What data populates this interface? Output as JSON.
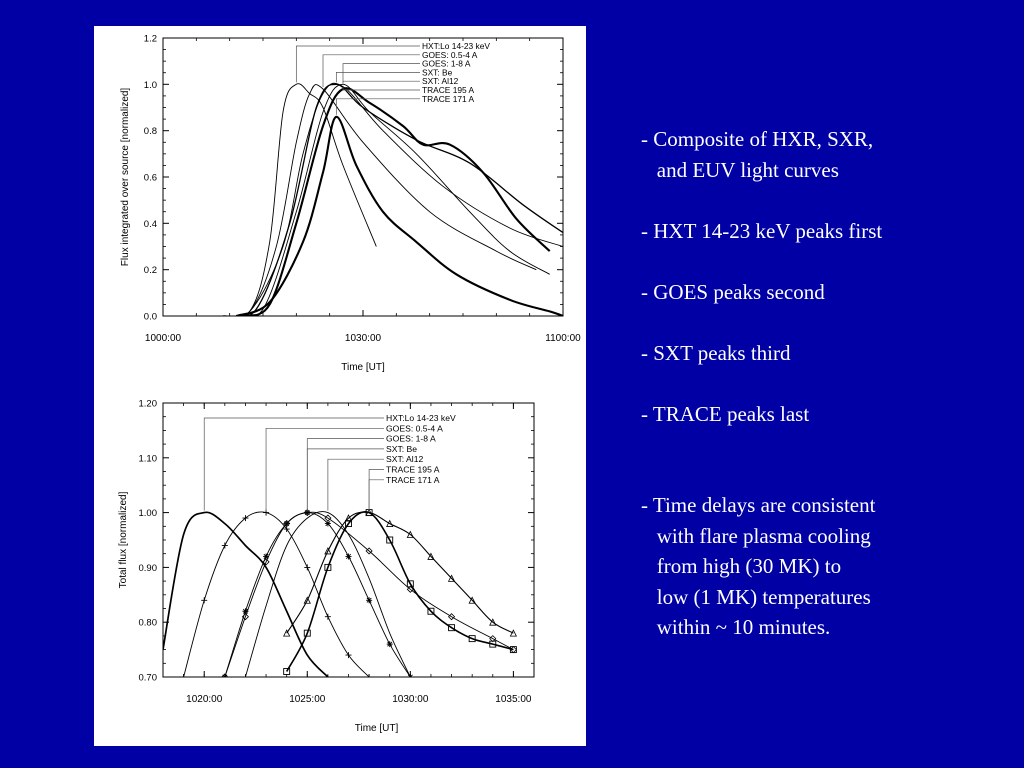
{
  "bullets": [
    "- Composite of HXR, SXR,\n   and EUV light curves",
    "- HXT 14-23 keV peaks first",
    "- GOES peaks second",
    "- SXT peaks third",
    "- TRACE peaks last",
    "- Time delays are consistent\n   with flare plasma cooling\n   from high (30 MK) to\n   low (1 MK) temperatures\n   within ~ 10 minutes."
  ],
  "chart_data": [
    {
      "type": "line",
      "title": "",
      "xlabel": "Time [UT]",
      "ylabel": "Flux integrated over source [normalized]",
      "x_tick_labels": [
        "1000:00",
        "1030:00",
        "1100:00"
      ],
      "y_tick_labels": [
        "0.0",
        "0.2",
        "0.4",
        "0.6",
        "0.8",
        "1.0",
        "1.2"
      ],
      "xlim": [
        "10:00",
        "11:00"
      ],
      "ylim": [
        0.0,
        1.2
      ],
      "legend_position": "top-right",
      "grid": false,
      "series": [
        {
          "name": "HXT:Lo 14-23 keV",
          "style": "thin",
          "x": [
            "10:08",
            "10:13",
            "10:16",
            "10:18",
            "10:20",
            "10:22",
            "10:24",
            "10:27",
            "10:32"
          ],
          "y": [
            0.0,
            0.02,
            0.32,
            0.88,
            1.0,
            0.96,
            0.9,
            0.65,
            0.3
          ]
        },
        {
          "name": "GOES: 0.5-4 A",
          "style": "thin",
          "x": [
            "10:08",
            "10:13",
            "10:17",
            "10:20",
            "10:22",
            "10:24",
            "10:30",
            "10:40",
            "10:50",
            "10:56"
          ],
          "y": [
            0.0,
            0.02,
            0.3,
            0.75,
            0.96,
            0.98,
            0.75,
            0.45,
            0.28,
            0.2
          ]
        },
        {
          "name": "GOES: 1-8 A",
          "style": "thin",
          "x": [
            "10:08",
            "10:13",
            "10:18",
            "10:21",
            "10:24",
            "10:27",
            "10:33",
            "10:42",
            "10:52",
            "11:00"
          ],
          "y": [
            0.0,
            0.02,
            0.3,
            0.7,
            0.96,
            0.99,
            0.8,
            0.56,
            0.38,
            0.3
          ]
        },
        {
          "name": "SXT: Be",
          "style": "medium",
          "x": [
            "10:09",
            "10:14",
            "10:19",
            "10:23",
            "10:26",
            "10:30",
            "10:38",
            "10:46",
            "10:54",
            "11:00"
          ],
          "y": [
            0.0,
            0.03,
            0.4,
            0.9,
            1.0,
            0.9,
            0.76,
            0.66,
            0.48,
            0.36
          ]
        },
        {
          "name": "SXT: Al12",
          "style": "thin",
          "x": [
            "10:10",
            "10:15",
            "10:20",
            "10:24",
            "10:27",
            "10:31",
            "10:38",
            "10:46",
            "10:52",
            "10:58"
          ],
          "y": [
            0.0,
            0.03,
            0.45,
            0.88,
            1.0,
            0.88,
            0.7,
            0.45,
            0.28,
            0.18
          ]
        },
        {
          "name": "TRACE 195 A",
          "style": "thick",
          "x": [
            "10:12",
            "10:16",
            "10:20",
            "10:24",
            "10:27",
            "10:31",
            "10:36",
            "10:39",
            "10:43",
            "10:48",
            "10:53",
            "10:58"
          ],
          "y": [
            0.0,
            0.05,
            0.4,
            0.82,
            0.98,
            0.92,
            0.82,
            0.74,
            0.74,
            0.62,
            0.42,
            0.28
          ]
        },
        {
          "name": "TRACE 171 A",
          "style": "thick",
          "x": [
            "10:11",
            "10:16",
            "10:21",
            "10:24",
            "10:26",
            "10:29",
            "10:33",
            "10:38",
            "10:44",
            "10:52",
            "10:58",
            "11:00"
          ],
          "y": [
            0.0,
            0.06,
            0.32,
            0.62,
            0.86,
            0.65,
            0.45,
            0.32,
            0.18,
            0.07,
            0.02,
            0.0
          ]
        }
      ]
    },
    {
      "type": "line",
      "title": "",
      "xlabel": "Time [UT]",
      "ylabel": "Total flux [normalized]",
      "x_tick_labels": [
        "1020:00",
        "1025:00",
        "1030:00",
        "1035:00"
      ],
      "y_tick_labels": [
        "0.70",
        "0.80",
        "0.90",
        "1.00",
        "1.10",
        "1.20"
      ],
      "xlim": [
        "10:18",
        "10:36"
      ],
      "ylim": [
        0.7,
        1.2
      ],
      "legend_position": "top-center",
      "grid": false,
      "series": [
        {
          "name": "HXT:Lo 14-23 keV",
          "style": "thick-noisy",
          "x": [
            "10:18",
            "10:19",
            "10:20",
            "10:21",
            "10:22",
            "10:23",
            "10:24",
            "10:25",
            "10:26"
          ],
          "y": [
            0.75,
            0.96,
            1.0,
            0.98,
            0.94,
            0.9,
            0.82,
            0.74,
            0.7
          ]
        },
        {
          "name": "GOES: 0.5-4 A",
          "style": "plus-markers",
          "x": [
            "10:19",
            "10:20",
            "10:21",
            "10:22",
            "10:23",
            "10:24",
            "10:25",
            "10:26",
            "10:27",
            "10:28"
          ],
          "y": [
            0.7,
            0.84,
            0.94,
            0.99,
            1.0,
            0.97,
            0.9,
            0.81,
            0.74,
            0.7
          ]
        },
        {
          "name": "GOES: 1-8 A",
          "style": "diamond-markers",
          "x": [
            "10:21",
            "10:22",
            "10:23",
            "10:24",
            "10:25",
            "10:26",
            "10:28",
            "10:30",
            "10:32",
            "10:34",
            "10:35"
          ],
          "y": [
            0.7,
            0.81,
            0.91,
            0.98,
            1.0,
            0.99,
            0.93,
            0.86,
            0.81,
            0.77,
            0.75
          ]
        },
        {
          "name": "SXT: Be",
          "style": "star-markers",
          "x": [
            "10:21",
            "10:22",
            "10:23",
            "10:24",
            "10:25",
            "10:26",
            "10:27",
            "10:28",
            "10:29",
            "10:30"
          ],
          "y": [
            0.7,
            0.82,
            0.92,
            0.98,
            1.0,
            0.98,
            0.92,
            0.84,
            0.76,
            0.7
          ]
        },
        {
          "name": "SXT: Al12",
          "style": "thin",
          "x": [
            "10:22",
            "10:23",
            "10:24",
            "10:25",
            "10:26",
            "10:27",
            "10:28",
            "10:29",
            "10:30"
          ],
          "y": [
            0.7,
            0.83,
            0.94,
            0.99,
            1.0,
            0.96,
            0.88,
            0.78,
            0.7
          ]
        },
        {
          "name": "TRACE 195 A",
          "style": "triangle-markers",
          "x": [
            "10:24",
            "10:25",
            "10:26",
            "10:27",
            "10:28",
            "10:29",
            "10:30",
            "10:31",
            "10:32",
            "10:33",
            "10:34",
            "10:35"
          ],
          "y": [
            0.78,
            0.84,
            0.93,
            0.99,
            1.0,
            0.98,
            0.96,
            0.92,
            0.88,
            0.84,
            0.8,
            0.78
          ]
        },
        {
          "name": "TRACE 171 A",
          "style": "square-markers",
          "x": [
            "10:24",
            "10:25",
            "10:26",
            "10:27",
            "10:28",
            "10:29",
            "10:30",
            "10:31",
            "10:32",
            "10:33",
            "10:34",
            "10:35"
          ],
          "y": [
            0.71,
            0.78,
            0.9,
            0.98,
            1.0,
            0.95,
            0.87,
            0.82,
            0.79,
            0.77,
            0.76,
            0.75
          ]
        }
      ]
    }
  ]
}
